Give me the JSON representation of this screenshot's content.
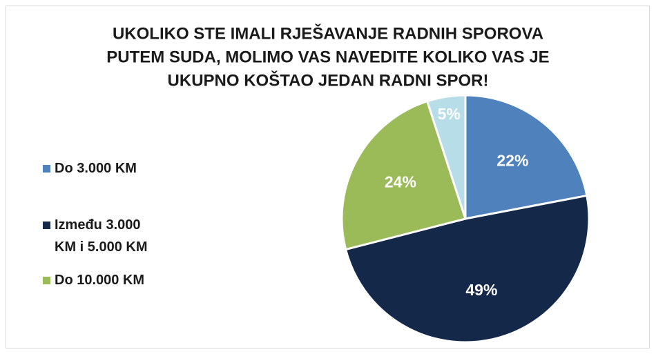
{
  "chart_data": {
    "type": "pie",
    "title": [
      "UKOLIKO STE IMALI RJEŠAVANJE RADNIH SPOROVA",
      "PUTEM SUDA,  MOLIMO VAS NAVEDITE KOLIKO VAS JE",
      "UKUPNO KOŠTAO JEDAN RADNI SPOR!"
    ],
    "categories": [
      "Do 3.000 KM",
      "Između 3.000 KM i 5.000 KM",
      "Do 10.000 KM",
      null
    ],
    "values": [
      22,
      49,
      24,
      5
    ],
    "value_labels": [
      "22%",
      "49%",
      "24%",
      "5%"
    ],
    "colors": [
      "#4f81bd",
      "#14284a",
      "#9bbb59",
      "#b7dde8"
    ],
    "legend": "left"
  }
}
